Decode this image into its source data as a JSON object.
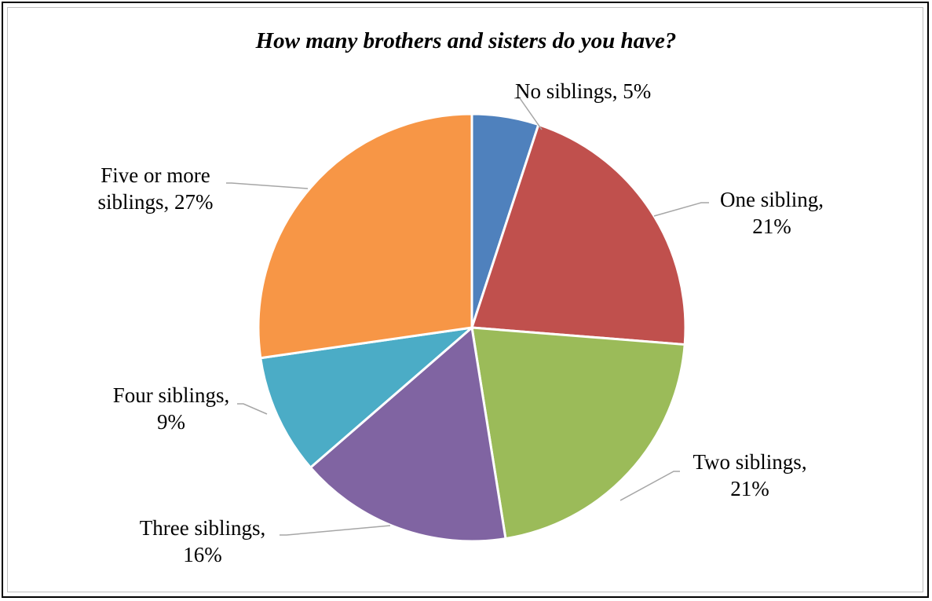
{
  "chart_data": {
    "type": "pie",
    "title": "How many brothers and sisters do you have?",
    "slices": [
      {
        "label": "No siblings",
        "value": 5,
        "percent_text": "5%",
        "color": "#4f81bd"
      },
      {
        "label": "One sibling",
        "value": 21,
        "percent_text": "21%",
        "color": "#c0504d"
      },
      {
        "label": "Two siblings",
        "value": 21,
        "percent_text": "21%",
        "color": "#9bbb59"
      },
      {
        "label": "Three siblings",
        "value": 16,
        "percent_text": "16%",
        "color": "#8064a2"
      },
      {
        "label": "Four siblings",
        "value": 9,
        "percent_text": "9%",
        "color": "#4bacc6"
      },
      {
        "label": "Five or more siblings",
        "value": 27,
        "percent_text": "27%",
        "color": "#f79646"
      }
    ],
    "legend": "none",
    "data_labels": "outside-with-leader-lines",
    "start_angle": "12 o'clock",
    "direction": "clockwise"
  }
}
